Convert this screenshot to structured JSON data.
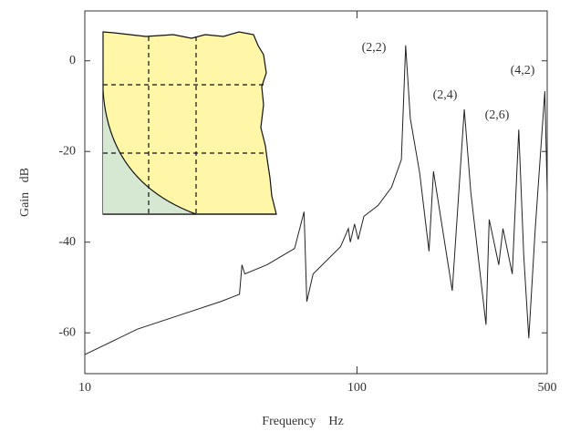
{
  "chart_data": {
    "type": "line",
    "x_label": "Frequency    Hz",
    "y_label": "Gain   dB",
    "xlim": [
      10,
      500
    ],
    "xticks": [
      10,
      100,
      500
    ],
    "log_x": true,
    "ylim": [
      -69,
      11
    ],
    "yticks": [
      0,
      -20,
      -40,
      -60
    ],
    "x": [
      10,
      15.6,
      23.1,
      31.6,
      37,
      37.8,
      38.7,
      46.7,
      59,
      63.9,
      65.4,
      69,
      87,
      93,
      94.5,
      98,
      101,
      106,
      119.6,
      134,
      145.6,
      151,
      157,
      170,
      184,
      191,
      224,
      248,
      262,
      298,
      306,
      332,
      344,
      372,
      393,
      410,
      428,
      452,
      490,
      500
    ],
    "series": [
      {
        "color": "#222222",
        "values": [
          -64.8,
          -59.2,
          -55.8,
          -53.1,
          -51.5,
          -45,
          -47,
          -45,
          -41.4,
          -33.3,
          -53.1,
          -47,
          -41,
          -37,
          -40,
          -36,
          -39.4,
          -34.3,
          -31.9,
          -27.9,
          -21.8,
          3.4,
          -12.7,
          -24.8,
          -42,
          -24.4,
          -50.7,
          -10.7,
          -28.9,
          -58.2,
          -35,
          -45,
          -37,
          -47,
          -15.2,
          -43,
          -61.2,
          -37,
          -6.7,
          -28.9
        ]
      }
    ],
    "annotations": [
      "(2,2)",
      "(2,4)",
      "(2,6)",
      "(4,2)"
    ]
  }
}
